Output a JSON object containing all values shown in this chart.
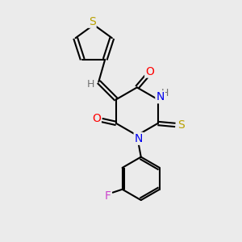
{
  "background_color": "#ebebeb",
  "bond_color": "#000000",
  "atom_colors": {
    "S": "#b8a000",
    "O": "#ff0000",
    "N": "#0000ee",
    "H": "#707070",
    "F": "#cc44cc",
    "C": "#000000"
  },
  "figsize": [
    3.0,
    3.0
  ],
  "dpi": 100
}
